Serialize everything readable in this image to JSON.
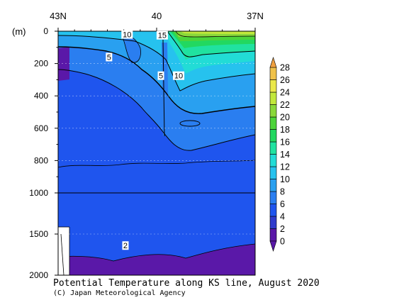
{
  "chart_data": {
    "type": "heatmap",
    "title": "Potential Temperature along KS line, August 2020",
    "credit": "(C) Japan Meteorological Agency",
    "x_axis": {
      "range_lat": [
        43,
        37
      ],
      "ticks": [
        {
          "value": 43,
          "label": "43N"
        },
        {
          "value": 40,
          "label": "40"
        },
        {
          "value": 37,
          "label": "37N"
        }
      ]
    },
    "y_axis": {
      "unit_label": "(m)",
      "scale": "piecewise-linear (0-1000 and 1000-2000 compressed)",
      "range": [
        0,
        2000
      ],
      "ticks": [
        0,
        200,
        400,
        600,
        800,
        1000,
        1500,
        2000
      ]
    },
    "colorbar": {
      "levels": [
        0,
        2,
        4,
        6,
        8,
        10,
        12,
        14,
        16,
        18,
        20,
        22,
        24,
        26,
        28
      ],
      "labels": [
        "0",
        "2",
        "4",
        "6",
        "8",
        "10",
        "12",
        "14",
        "16",
        "18",
        "20",
        "22",
        "24",
        "26",
        "28"
      ],
      "colors": [
        "#5a18a8",
        "#2f3bcc",
        "#1f55ee",
        "#2a7ef0",
        "#29a0f0",
        "#26c2ee",
        "#22dcd6",
        "#20e2a0",
        "#22d860",
        "#4cd43a",
        "#8ad83a",
        "#c2e83c",
        "#eae84a",
        "#f0c24a",
        "#f0a040"
      ]
    },
    "contour_labels": [
      {
        "value": "10",
        "lat": 40.9,
        "depth": 20
      },
      {
        "value": "15",
        "lat": 39.83,
        "depth": 25
      },
      {
        "value": "5",
        "lat": 41.45,
        "depth": 160
      },
      {
        "value": "5",
        "lat": 39.87,
        "depth": 275
      },
      {
        "value": "10",
        "lat": 39.33,
        "depth": 275
      },
      {
        "value": "2",
        "lat": 40.95,
        "depth": 1640
      }
    ],
    "colors": {
      "deep_water": "#1f55ee",
      "bottom_water": "#5a18a8"
    }
  }
}
